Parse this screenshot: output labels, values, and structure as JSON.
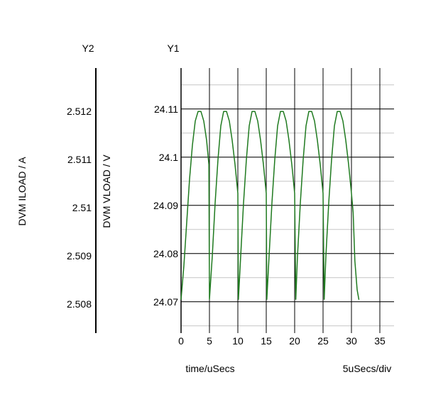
{
  "chart_data": {
    "type": "line",
    "y1_header": "Y1",
    "y2_header": "Y2",
    "xlabel": "time/uSecs",
    "x_scale_label": "5uSecs/div",
    "y1_label": "DVM VLOAD / V",
    "y2_label": "DVM ILOAD / A",
    "x_ticks": [
      "0",
      "5",
      "10",
      "15",
      "20",
      "25",
      "30",
      "35"
    ],
    "y1_ticks": [
      "24.11",
      "24.1",
      "24.09",
      "24.08",
      "24.07"
    ],
    "y2_ticks": [
      "2.512",
      "2.511",
      "2.51",
      "2.509",
      "2.508"
    ],
    "xlim": [
      0,
      37.5
    ],
    "y1lim": [
      24.0635,
      24.1185
    ],
    "y2lim": [
      2.5074,
      2.5129
    ],
    "grid": true,
    "series": [
      {
        "axis": "y1",
        "color": "#1f7a1f",
        "x": [
          0.0,
          0.5,
          1.0,
          1.5,
          2.0,
          2.5,
          3.0,
          3.5,
          4.0,
          4.5,
          4.9,
          5.0,
          5.5,
          6.0,
          6.5,
          7.0,
          7.5,
          8.0,
          8.5,
          9.0,
          9.5,
          10.0,
          10.1,
          10.5,
          11.0,
          11.5,
          12.0,
          12.5,
          13.0,
          13.5,
          14.0,
          14.5,
          15.0,
          15.1,
          15.5,
          16.0,
          16.5,
          17.0,
          17.5,
          18.0,
          18.5,
          19.0,
          19.5,
          20.0,
          20.2,
          20.5,
          21.0,
          21.5,
          22.0,
          22.5,
          23.0,
          23.5,
          24.0,
          24.5,
          25.0,
          25.2,
          25.5,
          26.0,
          26.5,
          27.0,
          27.5,
          28.0,
          28.5,
          29.0,
          29.5,
          30.0,
          30.3,
          30.6,
          31.0,
          31.3
        ],
        "y": [
          24.0705,
          24.0775,
          24.0865,
          24.0955,
          24.1025,
          24.1075,
          24.1095,
          24.1095,
          24.1075,
          24.1035,
          24.0985,
          24.0705,
          24.0795,
          24.0905,
          24.0995,
          24.1065,
          24.1095,
          24.1095,
          24.1075,
          24.1035,
          24.0985,
          24.0925,
          24.0705,
          24.0795,
          24.0905,
          24.0995,
          24.1065,
          24.1095,
          24.1095,
          24.1075,
          24.1035,
          24.0985,
          24.0925,
          24.0705,
          24.0795,
          24.0905,
          24.0995,
          24.1065,
          24.1095,
          24.1095,
          24.1075,
          24.1035,
          24.0985,
          24.0925,
          24.0705,
          24.0795,
          24.0905,
          24.0995,
          24.1065,
          24.1095,
          24.1095,
          24.1075,
          24.1035,
          24.0985,
          24.0925,
          24.0705,
          24.0795,
          24.0905,
          24.0995,
          24.1065,
          24.1095,
          24.1095,
          24.1075,
          24.1035,
          24.0985,
          24.0925,
          24.0885,
          24.0785,
          24.0725,
          24.0705
        ]
      }
    ]
  }
}
